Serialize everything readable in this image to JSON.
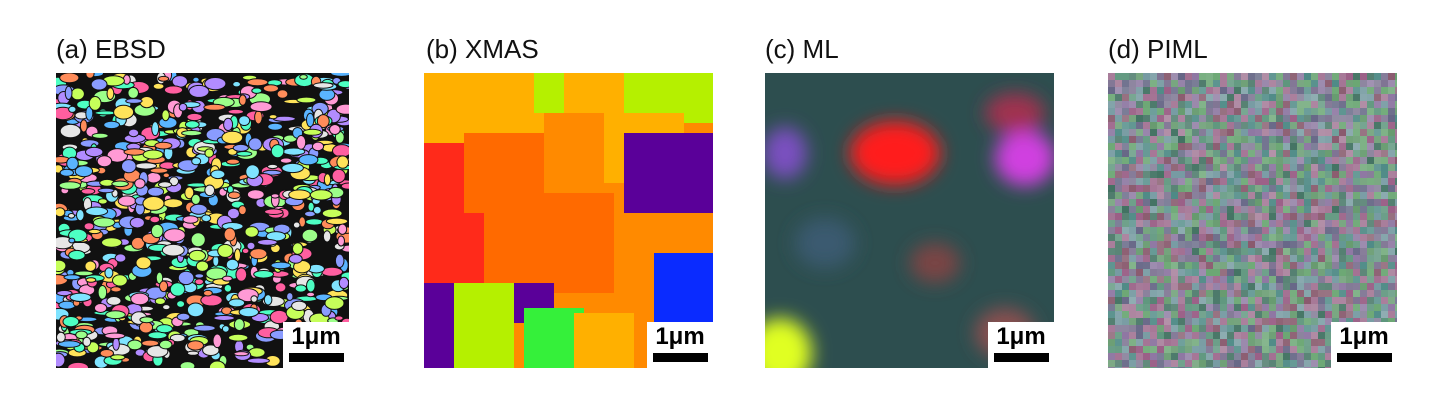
{
  "panels": [
    {
      "title": "(a) EBSD",
      "scale": "1μm",
      "style": "ebsd"
    },
    {
      "title": "(b) XMAS",
      "scale": "1μm",
      "style": "xmas"
    },
    {
      "title": "(c) ML",
      "scale": "1μm",
      "style": "ml"
    },
    {
      "title": "(d) PIML",
      "scale": "1μm",
      "style": "piml"
    }
  ],
  "colors": {
    "ebsd_palette": [
      "#7fe3ff",
      "#ff9ad5",
      "#9cff8a",
      "#ffe35a",
      "#b28cff",
      "#ff8c5a",
      "#5ab4ff",
      "#e6e6e6",
      "#4dffc3",
      "#ff5fa0",
      "#c6ff5a",
      "#8a9cff"
    ],
    "xmas_palette": [
      "#ff8a00",
      "#ff6a00",
      "#ffb000",
      "#b5f000",
      "#2a9dff",
      "#0a2bff",
      "#5a0099",
      "#ff2a1a",
      "#35f03a"
    ],
    "ml_base": "#2d4e4f",
    "piml_base": "#5a8a7a"
  }
}
